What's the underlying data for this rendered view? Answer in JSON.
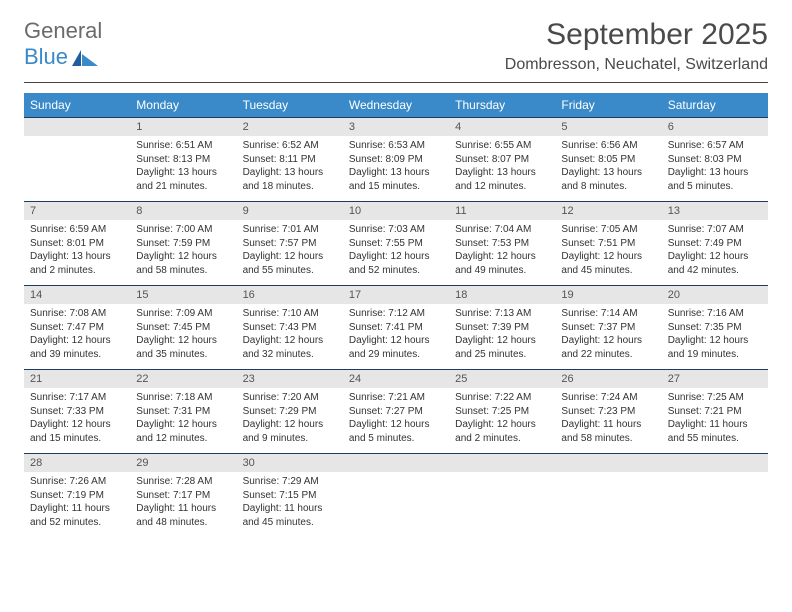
{
  "logo": {
    "part1": "General",
    "part2": "Blue"
  },
  "header": {
    "title": "September 2025",
    "location": "Dombresson, Neuchatel, Switzerland"
  },
  "colors": {
    "header_bg": "#3a8ac9",
    "header_text": "#ffffff",
    "band_bg": "#e6e6e6",
    "band_border": "#1f3a5f",
    "body_text": "#333333",
    "logo_gray": "#6b6b6b",
    "logo_blue": "#3a8ac9"
  },
  "daysOfWeek": [
    "Sunday",
    "Monday",
    "Tuesday",
    "Wednesday",
    "Thursday",
    "Friday",
    "Saturday"
  ],
  "weeks": [
    [
      {
        "num": "",
        "lines": []
      },
      {
        "num": "1",
        "lines": [
          "Sunrise: 6:51 AM",
          "Sunset: 8:13 PM",
          "Daylight: 13 hours",
          "and 21 minutes."
        ]
      },
      {
        "num": "2",
        "lines": [
          "Sunrise: 6:52 AM",
          "Sunset: 8:11 PM",
          "Daylight: 13 hours",
          "and 18 minutes."
        ]
      },
      {
        "num": "3",
        "lines": [
          "Sunrise: 6:53 AM",
          "Sunset: 8:09 PM",
          "Daylight: 13 hours",
          "and 15 minutes."
        ]
      },
      {
        "num": "4",
        "lines": [
          "Sunrise: 6:55 AM",
          "Sunset: 8:07 PM",
          "Daylight: 13 hours",
          "and 12 minutes."
        ]
      },
      {
        "num": "5",
        "lines": [
          "Sunrise: 6:56 AM",
          "Sunset: 8:05 PM",
          "Daylight: 13 hours",
          "and 8 minutes."
        ]
      },
      {
        "num": "6",
        "lines": [
          "Sunrise: 6:57 AM",
          "Sunset: 8:03 PM",
          "Daylight: 13 hours",
          "and 5 minutes."
        ]
      }
    ],
    [
      {
        "num": "7",
        "lines": [
          "Sunrise: 6:59 AM",
          "Sunset: 8:01 PM",
          "Daylight: 13 hours",
          "and 2 minutes."
        ]
      },
      {
        "num": "8",
        "lines": [
          "Sunrise: 7:00 AM",
          "Sunset: 7:59 PM",
          "Daylight: 12 hours",
          "and 58 minutes."
        ]
      },
      {
        "num": "9",
        "lines": [
          "Sunrise: 7:01 AM",
          "Sunset: 7:57 PM",
          "Daylight: 12 hours",
          "and 55 minutes."
        ]
      },
      {
        "num": "10",
        "lines": [
          "Sunrise: 7:03 AM",
          "Sunset: 7:55 PM",
          "Daylight: 12 hours",
          "and 52 minutes."
        ]
      },
      {
        "num": "11",
        "lines": [
          "Sunrise: 7:04 AM",
          "Sunset: 7:53 PM",
          "Daylight: 12 hours",
          "and 49 minutes."
        ]
      },
      {
        "num": "12",
        "lines": [
          "Sunrise: 7:05 AM",
          "Sunset: 7:51 PM",
          "Daylight: 12 hours",
          "and 45 minutes."
        ]
      },
      {
        "num": "13",
        "lines": [
          "Sunrise: 7:07 AM",
          "Sunset: 7:49 PM",
          "Daylight: 12 hours",
          "and 42 minutes."
        ]
      }
    ],
    [
      {
        "num": "14",
        "lines": [
          "Sunrise: 7:08 AM",
          "Sunset: 7:47 PM",
          "Daylight: 12 hours",
          "and 39 minutes."
        ]
      },
      {
        "num": "15",
        "lines": [
          "Sunrise: 7:09 AM",
          "Sunset: 7:45 PM",
          "Daylight: 12 hours",
          "and 35 minutes."
        ]
      },
      {
        "num": "16",
        "lines": [
          "Sunrise: 7:10 AM",
          "Sunset: 7:43 PM",
          "Daylight: 12 hours",
          "and 32 minutes."
        ]
      },
      {
        "num": "17",
        "lines": [
          "Sunrise: 7:12 AM",
          "Sunset: 7:41 PM",
          "Daylight: 12 hours",
          "and 29 minutes."
        ]
      },
      {
        "num": "18",
        "lines": [
          "Sunrise: 7:13 AM",
          "Sunset: 7:39 PM",
          "Daylight: 12 hours",
          "and 25 minutes."
        ]
      },
      {
        "num": "19",
        "lines": [
          "Sunrise: 7:14 AM",
          "Sunset: 7:37 PM",
          "Daylight: 12 hours",
          "and 22 minutes."
        ]
      },
      {
        "num": "20",
        "lines": [
          "Sunrise: 7:16 AM",
          "Sunset: 7:35 PM",
          "Daylight: 12 hours",
          "and 19 minutes."
        ]
      }
    ],
    [
      {
        "num": "21",
        "lines": [
          "Sunrise: 7:17 AM",
          "Sunset: 7:33 PM",
          "Daylight: 12 hours",
          "and 15 minutes."
        ]
      },
      {
        "num": "22",
        "lines": [
          "Sunrise: 7:18 AM",
          "Sunset: 7:31 PM",
          "Daylight: 12 hours",
          "and 12 minutes."
        ]
      },
      {
        "num": "23",
        "lines": [
          "Sunrise: 7:20 AM",
          "Sunset: 7:29 PM",
          "Daylight: 12 hours",
          "and 9 minutes."
        ]
      },
      {
        "num": "24",
        "lines": [
          "Sunrise: 7:21 AM",
          "Sunset: 7:27 PM",
          "Daylight: 12 hours",
          "and 5 minutes."
        ]
      },
      {
        "num": "25",
        "lines": [
          "Sunrise: 7:22 AM",
          "Sunset: 7:25 PM",
          "Daylight: 12 hours",
          "and 2 minutes."
        ]
      },
      {
        "num": "26",
        "lines": [
          "Sunrise: 7:24 AM",
          "Sunset: 7:23 PM",
          "Daylight: 11 hours",
          "and 58 minutes."
        ]
      },
      {
        "num": "27",
        "lines": [
          "Sunrise: 7:25 AM",
          "Sunset: 7:21 PM",
          "Daylight: 11 hours",
          "and 55 minutes."
        ]
      }
    ],
    [
      {
        "num": "28",
        "lines": [
          "Sunrise: 7:26 AM",
          "Sunset: 7:19 PM",
          "Daylight: 11 hours",
          "and 52 minutes."
        ]
      },
      {
        "num": "29",
        "lines": [
          "Sunrise: 7:28 AM",
          "Sunset: 7:17 PM",
          "Daylight: 11 hours",
          "and 48 minutes."
        ]
      },
      {
        "num": "30",
        "lines": [
          "Sunrise: 7:29 AM",
          "Sunset: 7:15 PM",
          "Daylight: 11 hours",
          "and 45 minutes."
        ]
      },
      {
        "num": "",
        "lines": []
      },
      {
        "num": "",
        "lines": []
      },
      {
        "num": "",
        "lines": []
      },
      {
        "num": "",
        "lines": []
      }
    ]
  ]
}
